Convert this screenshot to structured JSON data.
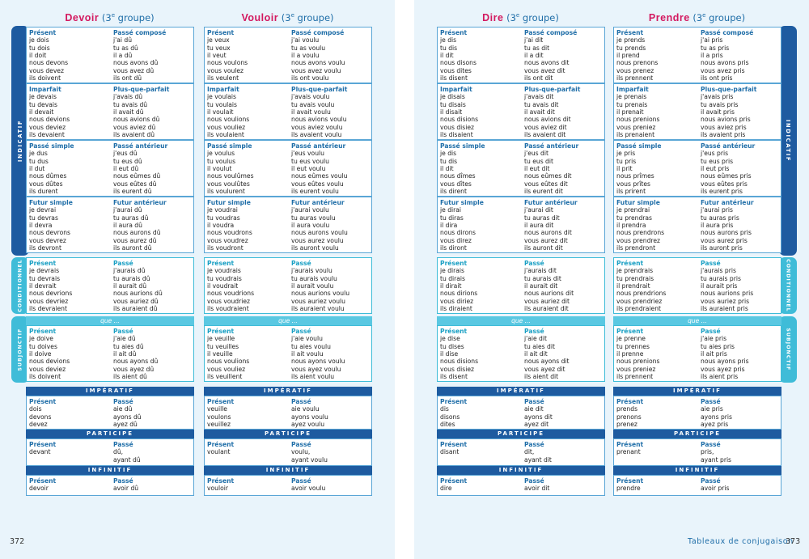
{
  "page_numbers": {
    "left": "372",
    "right": "373"
  },
  "footer_title": "Tableaux de conjugaison",
  "mode_labels": {
    "indicatif": "INDICATIF",
    "conditionnel": "CONDITIONNEL",
    "subjonctif": "SUBJONCTIF",
    "imperatif": "IMPÉRATIF",
    "participe": "PARTICIPE",
    "infinitif": "INFINITIF",
    "que": "que ..."
  },
  "tense_labels": {
    "present": "Présent",
    "passe_compose": "Passé composé",
    "imparfait": "Imparfait",
    "plus_que_parfait": "Plus-que-parfait",
    "passe_simple": "Passé simple",
    "passe_anterieur": "Passé antérieur",
    "futur_simple": "Futur simple",
    "futur_anterieur": "Futur antérieur",
    "passe": "Passé"
  },
  "verbs": [
    {
      "name": "Devoir",
      "group": "(3",
      "group_sup": "e",
      "group_rest": " groupe)",
      "present": [
        "je dois",
        "tu dois",
        "il doit",
        "nous devons",
        "vous devez",
        "ils doivent"
      ],
      "passe_compose": [
        "j'ai dû",
        "tu as dû",
        "il a dû",
        "nous avons dû",
        "vous avez dû",
        "ils ont dû"
      ],
      "imparfait": [
        "je devais",
        "tu devais",
        "il devait",
        "nous devions",
        "vous deviez",
        "ils devaient"
      ],
      "plus_que_parfait": [
        "j'avais dû",
        "tu avais dû",
        "il avait dû",
        "nous avions dû",
        "vous aviez dû",
        "ils avaient dû"
      ],
      "passe_simple": [
        "je dus",
        "tu dus",
        "il dut",
        "nous dûmes",
        "vous dûtes",
        "ils durent"
      ],
      "passe_anterieur": [
        "j'eus dû",
        "tu eus dû",
        "il eut dû",
        "nous eûmes dû",
        "vous eûtes dû",
        "ils eurent dû"
      ],
      "futur_simple": [
        "je devrai",
        "tu devras",
        "il devra",
        "nous devrons",
        "vous devrez",
        "ils devront"
      ],
      "futur_anterieur": [
        "j'aurai dû",
        "tu auras dû",
        "il aura dû",
        "nous aurons dû",
        "vous aurez dû",
        "ils auront dû"
      ],
      "cond_present": [
        "je devrais",
        "tu devrais",
        "il devrait",
        "nous devrions",
        "vous devriez",
        "ils devraient"
      ],
      "cond_passe": [
        "j'aurais dû",
        "tu aurais dû",
        "il aurait dû",
        "nous aurions dû",
        "vous auriez dû",
        "ils auraient dû"
      ],
      "subj_present": [
        "je doive",
        "tu doives",
        "il doive",
        "nous devions",
        "vous deviez",
        "ils doivent"
      ],
      "subj_passe": [
        "j'aie dû",
        "tu aies dû",
        "il ait dû",
        "nous ayons dû",
        "vous ayez dû",
        "ils aient dû"
      ],
      "imp_present": [
        "dois",
        "devons",
        "devez"
      ],
      "imp_passe": [
        "aie dû",
        "ayons dû",
        "ayez dû"
      ],
      "part_present": [
        "devant"
      ],
      "part_passe": [
        "dû,",
        "ayant dû"
      ],
      "inf_present": [
        "devoir"
      ],
      "inf_passe": [
        "avoir dû"
      ]
    },
    {
      "name": "Vouloir",
      "group": "(3",
      "group_sup": "e",
      "group_rest": " groupe)",
      "present": [
        "je veux",
        "tu veux",
        "il veut",
        "nous voulons",
        "vous voulez",
        "ils veulent"
      ],
      "passe_compose": [
        "j'ai voulu",
        "tu as voulu",
        "il a voulu",
        "nous avons voulu",
        "vous avez voulu",
        "ils ont voulu"
      ],
      "imparfait": [
        "je voulais",
        "tu voulais",
        "il voulait",
        "nous voulions",
        "vous vouliez",
        "ils voulaient"
      ],
      "plus_que_parfait": [
        "j'avais voulu",
        "tu avais voulu",
        "il avait voulu",
        "nous avions voulu",
        "vous aviez voulu",
        "ils avaient voulu"
      ],
      "passe_simple": [
        "je voulus",
        "tu voulus",
        "il voulut",
        "nous voulûmes",
        "vous voulûtes",
        "ils voulurent"
      ],
      "passe_anterieur": [
        "j'eus voulu",
        "tu eus voulu",
        "il eut voulu",
        "nous eûmes voulu",
        "vous eûtes voulu",
        "ils eurent voulu"
      ],
      "futur_simple": [
        "je voudrai",
        "tu voudras",
        "il voudra",
        "nous voudrons",
        "vous voudrez",
        "ils voudront"
      ],
      "futur_anterieur": [
        "j'aurai voulu",
        "tu auras voulu",
        "il aura voulu",
        "nous aurons voulu",
        "vous aurez voulu",
        "ils auront voulu"
      ],
      "cond_present": [
        "je voudrais",
        "tu voudrais",
        "il voudrait",
        "nous voudrions",
        "vous voudriez",
        "ils voudraient"
      ],
      "cond_passe": [
        "j'aurais voulu",
        "tu aurais voulu",
        "il aurait voulu",
        "nous aurions voulu",
        "vous auriez voulu",
        "ils auraient voulu"
      ],
      "subj_present": [
        "je veuille",
        "tu veuilles",
        "il veuille",
        "nous voulions",
        "vous vouliez",
        "ils veuillent"
      ],
      "subj_passe": [
        "j'aie voulu",
        "tu aies voulu",
        "il ait voulu",
        "nous ayons voulu",
        "vous ayez voulu",
        "ils aient voulu"
      ],
      "imp_present": [
        "veuille",
        "voulons",
        "veuillez"
      ],
      "imp_passe": [
        "aie voulu",
        "ayons voulu",
        "ayez voulu"
      ],
      "part_present": [
        "voulant"
      ],
      "part_passe": [
        "voulu,",
        "ayant voulu"
      ],
      "inf_present": [
        "vouloir"
      ],
      "inf_passe": [
        "avoir voulu"
      ]
    },
    {
      "name": "Dire",
      "group": "(3",
      "group_sup": "e",
      "group_rest": " groupe)",
      "present": [
        "je dis",
        "tu dis",
        "il dit",
        "nous disons",
        "vous dites",
        "ils disent"
      ],
      "passe_compose": [
        "j'ai dit",
        "tu as dit",
        "il a dit",
        "nous avons dit",
        "vous avez dit",
        "ils ont dit"
      ],
      "imparfait": [
        "je disais",
        "tu disais",
        "il disait",
        "nous disions",
        "vous disiez",
        "ils disaient"
      ],
      "plus_que_parfait": [
        "j'avais dit",
        "tu avais dit",
        "il avait dit",
        "nous avions dit",
        "vous aviez dit",
        "ils avaient dit"
      ],
      "passe_simple": [
        "je dis",
        "tu dis",
        "il dit",
        "nous dîmes",
        "vous dîtes",
        "ils dirent"
      ],
      "passe_anterieur": [
        "j'eus dit",
        "tu eus dit",
        "il eut dit",
        "nous eûmes dit",
        "vous eûtes dit",
        "ils eurent dit"
      ],
      "futur_simple": [
        "je dirai",
        "tu diras",
        "il dira",
        "nous dirons",
        "vous direz",
        "ils diront"
      ],
      "futur_anterieur": [
        "j'aurai dit",
        "tu auras dit",
        "il aura dit",
        "nous aurons dit",
        "vous aurez dit",
        "ils auront dit"
      ],
      "cond_present": [
        "je dirais",
        "tu dirais",
        "il dirait",
        "nous dirions",
        "vous diriez",
        "ils diraient"
      ],
      "cond_passe": [
        "j'aurais dit",
        "tu aurais dit",
        "il aurait dit",
        "nous aurions dit",
        "vous auriez dit",
        "ils auraient dit"
      ],
      "subj_present": [
        "je dise",
        "tu dises",
        "il dise",
        "nous disions",
        "vous disiez",
        "ils disent"
      ],
      "subj_passe": [
        "j'aie dit",
        "tu aies dit",
        "il ait dit",
        "nous ayons dit",
        "vous ayez dit",
        "ils aient dit"
      ],
      "imp_present": [
        "dis",
        "disons",
        "dites"
      ],
      "imp_passe": [
        "aie dit",
        "ayons dit",
        "ayez dit"
      ],
      "part_present": [
        "disant"
      ],
      "part_passe": [
        "dit,",
        "ayant dit"
      ],
      "inf_present": [
        "dire"
      ],
      "inf_passe": [
        "avoir dit"
      ]
    },
    {
      "name": "Prendre",
      "group": "(3",
      "group_sup": "e",
      "group_rest": " groupe)",
      "present": [
        "je prends",
        "tu prends",
        "il prend",
        "nous prenons",
        "vous prenez",
        "ils prennent"
      ],
      "passe_compose": [
        "j'ai pris",
        "tu as pris",
        "il a pris",
        "nous avons pris",
        "vous avez pris",
        "ils ont pris"
      ],
      "imparfait": [
        "je prenais",
        "tu prenais",
        "il prenait",
        "nous prenions",
        "vous preniez",
        "ils prenaient"
      ],
      "plus_que_parfait": [
        "j'avais pris",
        "tu avais pris",
        "il avait pris",
        "nous avions pris",
        "vous aviez pris",
        "ils avaient pris"
      ],
      "passe_simple": [
        "je pris",
        "tu pris",
        "il prit",
        "nous prîmes",
        "vous prîtes",
        "ils prirent"
      ],
      "passe_anterieur": [
        "j'eus pris",
        "tu eus pris",
        "il eut pris",
        "nous eûmes pris",
        "vous eûtes pris",
        "ils eurent pris"
      ],
      "futur_simple": [
        "je prendrai",
        "tu prendras",
        "il prendra",
        "nous prendrons",
        "vous prendrez",
        "ils prendront"
      ],
      "futur_anterieur": [
        "j'aurai pris",
        "tu auras pris",
        "il aura pris",
        "nous aurons pris",
        "vous aurez pris",
        "ils auront pris"
      ],
      "cond_present": [
        "je prendrais",
        "tu prendrais",
        "il prendrait",
        "nous prendrions",
        "vous prendriez",
        "ils prendraient"
      ],
      "cond_passe": [
        "j'aurais pris",
        "tu aurais pris",
        "il aurait pris",
        "nous aurions pris",
        "vous auriez pris",
        "ils auraient pris"
      ],
      "subj_present": [
        "je prenne",
        "tu prennes",
        "il prenne",
        "nous prenions",
        "vous preniez",
        "ils prennent"
      ],
      "subj_passe": [
        "j'aie pris",
        "tu aies pris",
        "il ait pris",
        "nous ayons pris",
        "vous ayez pris",
        "ils aient pris"
      ],
      "imp_present": [
        "prends",
        "prenons",
        "prenez"
      ],
      "imp_passe": [
        "aie pris",
        "ayons pris",
        "ayez pris"
      ],
      "part_present": [
        "prenant"
      ],
      "part_passe": [
        "pris,",
        "ayant pris"
      ],
      "inf_present": [
        "prendre"
      ],
      "inf_passe": [
        "avoir pris"
      ]
    }
  ]
}
